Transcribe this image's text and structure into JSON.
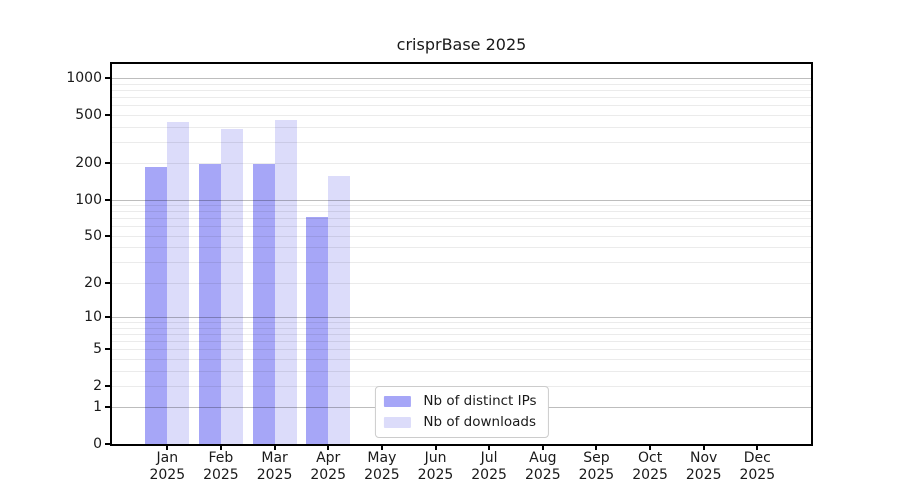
{
  "figure": {
    "background": "#ffffff",
    "axis_color": "#000000",
    "text_color": "#1a1a1a"
  },
  "chart_data": {
    "type": "bar",
    "title": "crisprBase 2025",
    "xlabel": "",
    "ylabel": "",
    "x_months": [
      "Jan",
      "Feb",
      "Mar",
      "Apr",
      "May",
      "Jun",
      "Jul",
      "Aug",
      "Sep",
      "Oct",
      "Nov",
      "Dec"
    ],
    "x_year": "2025",
    "y_scale": "log1p",
    "y_ticks": [
      0,
      1,
      2,
      5,
      10,
      20,
      50,
      100,
      200,
      500,
      1000
    ],
    "ylim": [
      0,
      1300
    ],
    "grid": {
      "horizontal": true,
      "major_at_powers_of_ten": true,
      "major_color": "rgba(0,0,0,0.26)",
      "minor_color": "rgba(0,0,0,0.08)"
    },
    "legend": {
      "position": "lower center",
      "border_color": "#cccccc",
      "background": "#ffffff"
    },
    "series": [
      {
        "name": "Nb of distinct IPs",
        "color": "#a6a6f7",
        "values": [
          185,
          195,
          197,
          72,
          null,
          null,
          null,
          null,
          null,
          null,
          null,
          null
        ]
      },
      {
        "name": "Nb of downloads",
        "color": "#dcdcfa",
        "values": [
          433,
          383,
          455,
          156,
          null,
          null,
          null,
          null,
          null,
          null,
          null,
          null
        ]
      }
    ]
  }
}
